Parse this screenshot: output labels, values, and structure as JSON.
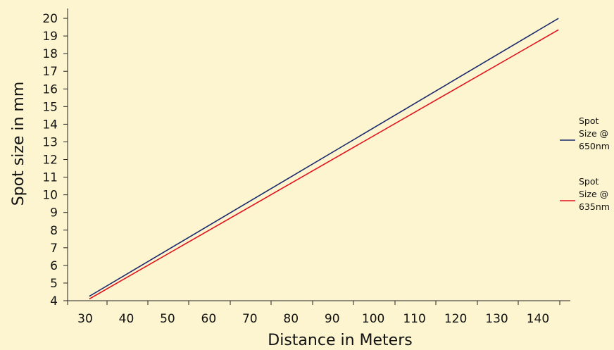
{
  "chart_data": {
    "type": "line",
    "xlabel": "Distance in Meters",
    "ylabel": "Spot size in mm",
    "xlim": [
      25,
      150
    ],
    "ylim": [
      4,
      20.5
    ],
    "x_ticks": [
      30,
      40,
      50,
      60,
      70,
      80,
      90,
      100,
      110,
      120,
      130,
      140
    ],
    "y_ticks": [
      4,
      5,
      6,
      7,
      8,
      9,
      10,
      11,
      12,
      13,
      14,
      15,
      16,
      17,
      18,
      19,
      20
    ],
    "grid": false,
    "legend_position": "right",
    "series": [
      {
        "name_lines": [
          "Spot",
          "Size @",
          "650nm"
        ],
        "color": "#1a2a6c",
        "x": [
          31,
          145
        ],
        "y": [
          4.25,
          20.0
        ]
      },
      {
        "name_lines": [
          "Spot",
          "Size @",
          "635nm"
        ],
        "color": "#e0141e",
        "x": [
          31,
          145
        ],
        "y": [
          4.1,
          19.35
        ]
      }
    ]
  }
}
